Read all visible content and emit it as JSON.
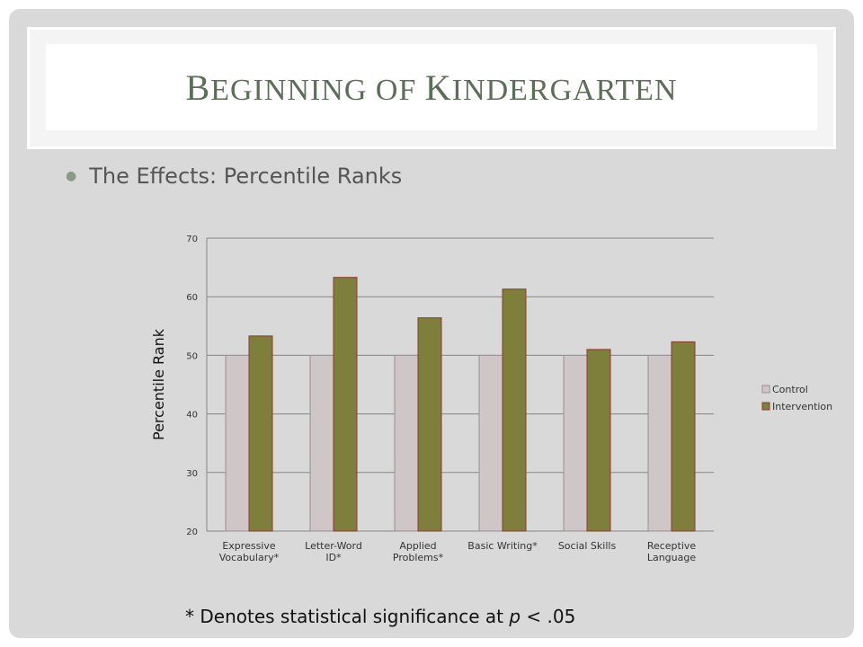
{
  "slide": {
    "title_parts": [
      "B",
      "EGINNING OF ",
      "K",
      "INDERGARTEN"
    ],
    "subtitle": "The Effects: Percentile Ranks",
    "footnote_pre": "* Denotes statistical significance at ",
    "footnote_p": "p",
    "footnote_post": " < .05",
    "colors": {
      "control": "#cfc6c8",
      "intervention": "#7f7f3c",
      "bar_border": "#8b3a2e",
      "grid": "#888888"
    }
  },
  "chart_data": {
    "type": "bar",
    "categories": [
      [
        "Expressive",
        "Vocabulary*"
      ],
      [
        "Letter-Word",
        "ID*"
      ],
      [
        "Applied",
        "Problems*"
      ],
      [
        "Basic Writing*"
      ],
      [
        "Social Skills"
      ],
      [
        "Receptive",
        "Language"
      ]
    ],
    "series": [
      {
        "name": "Control",
        "values": [
          50,
          50,
          50,
          50,
          50,
          50
        ]
      },
      {
        "name": "Intervention",
        "values": [
          53.3,
          63.3,
          56.4,
          61.3,
          51.0,
          52.3
        ]
      }
    ],
    "ylabel": "Percentile Rank",
    "ylim": [
      20,
      70
    ],
    "yticks": [
      "20",
      "30",
      "40",
      "50",
      "60",
      "70"
    ],
    "grid": true,
    "legend_position": "right"
  }
}
